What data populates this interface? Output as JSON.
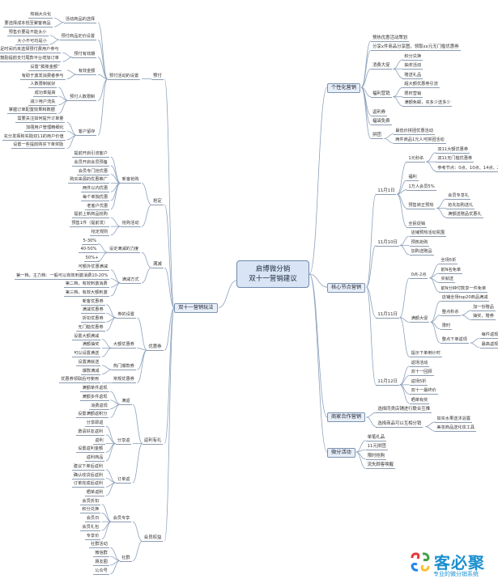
{
  "root": {
    "line1": "启博微分销",
    "line2": "双十一营销建议"
  },
  "mindmap": {
    "right": [
      {
        "t": "个性化营销",
        "c": [
          {
            "t": "预热优惠活动策划"
          },
          {
            "t": "分享x件商品分享图，领取xx元无门槛优惠券"
          },
          {
            "t": "消费大促",
            "c": [
              {
                "t": "积分兑换"
              },
              {
                "t": "抽奖活动"
              },
              {
                "t": "赠送礼品"
              }
            ]
          },
          {
            "t": "福利营销",
            "c": [
              {
                "t": "超大额优惠券引流"
              },
              {
                "t": "限时营销"
              },
              {
                "t": "满额免邮，买多少送多少"
              }
            ]
          },
          {
            "t": "返利券"
          },
          {
            "t": "福袋免费"
          },
          {
            "t": "拼团",
            "c": [
              {
                "t": "最低价拼团优惠活动"
              },
              {
                "t": "两件商品1元人可拼团活动"
              }
            ]
          }
        ]
      },
      {
        "t": "核心节点营销",
        "c": [
          {
            "t": "11月1日",
            "c": [
              {
                "t": "1元秒杀",
                "c": [
                  {
                    "t": "双11大额优惠券"
                  },
                  {
                    "t": "双11无门槛优惠券"
                  },
                  {
                    "t": "参考节点：0点、10点、14点、20点、22点"
                  }
                ]
              },
              {
                "t": "福利"
              },
              {
                "t": "1万人会员5%"
              },
              {
                "t": "预售转正预热",
                "c": [
                  {
                    "t": "会员专享礼"
                  },
                  {
                    "t": "抢先加购送礼"
                  },
                  {
                    "t": "满额送赠品优惠礼"
                  }
                ]
              },
              {
                "t": "全民促销"
              }
            ]
          },
          {
            "t": "11月10日",
            "c": [
              {
                "t": "店铺预热活动氛围"
              },
              {
                "t": "预热抢购"
              },
              {
                "t": "加购送赠品"
              }
            ]
          },
          {
            "t": "11月11日",
            "c": [
              {
                "t": "0点-2点",
                "c": [
                  {
                    "t": "全场5折"
                  },
                  {
                    "t": "前N名免单"
                  },
                  {
                    "t": "买就送"
                  },
                  {
                    "t": "前N分钟付款享一件免单"
                  }
                ]
              },
              {
                "t": "满额大促",
                "c": [
                  {
                    "t": "店铺全场top20商品满减"
                  },
                  {
                    "t": "整点秒杀",
                    "c": [
                      {
                        "t": "加一份赠品"
                      },
                      {
                        "t": "抽奖，赠券"
                      }
                    ]
                  },
                  {
                    "t": "限时"
                  },
                  {
                    "t": "整点下单返现",
                    "c": [
                      {
                        "t": "每件返现二元"
                      },
                      {
                        "t": "最高返现至买家"
                      }
                    ]
                  }
                ]
              },
              {
                "t": "提示下单倒计时"
              }
            ]
          },
          {
            "t": "11月12日",
            "c": [
              {
                "t": "返场活动"
              },
              {
                "t": "双十一回顾"
              },
              {
                "t": "返场5折"
              },
              {
                "t": "双十一最终价"
              },
              {
                "t": "晒单有奖"
              }
            ]
          }
        ]
      },
      {
        "t": "商家合作营销",
        "c": [
          {
            "t": "选择同类店铺进行联合互推"
          },
          {
            "t": "选择商品可以互相分销",
            "c": [
              {
                "t": "如买水果送沐浴露"
              },
              {
                "t": "美妆商品送化妆工具"
              }
            ]
          }
        ]
      },
      {
        "t": "微分活动",
        "c": [
          {
            "t": "单笔礼品"
          },
          {
            "t": "11元拼团"
          },
          {
            "t": "限时抢购"
          },
          {
            "t": "流失顾客唤醒"
          }
        ]
      }
    ],
    "left": [
      {
        "t": "双十一营销玩法",
        "c": [
          {
            "t": "预付",
            "c": [
              {
                "t": "预付活动的设置",
                "c": [
                  {
                    "t": "活动商品的选择",
                    "c": [
                      {
                        "t": "热销大众化"
                      },
                      {
                        "t": "要选择成本低至聚客商品"
                      }
                    ]
                  },
                  {
                    "t": "预付商品定价设置",
                    "c": [
                      {
                        "t": "预售价要是不能太小"
                      },
                      {
                        "t": "大小不可均是小"
                      }
                    ]
                  },
                  {
                    "t": "预付有效期",
                    "c": [
                      {
                        "t": "满足时间内未选择预付费用户参与"
                      },
                      {
                        "t": "鼓励提前支付尾款平台增加订单"
                      }
                    ]
                  },
                  {
                    "t": "有效金额",
                    "c": [
                      {
                        "t": "设置“膨胀金额”"
                      },
                      {
                        "t": "有助于激发消费者参与"
                      }
                    ]
                  },
                  {
                    "t": "预付人数限制",
                    "c": [
                      {
                        "t": "人数限制就好"
                      },
                      {
                        "t": "成功率提高"
                      },
                      {
                        "t": "减少用户流失"
                      },
                      {
                        "t": "掌握订单配置效果和数据"
                      }
                    ]
                  },
                  {
                    "t": "客户留存",
                    "c": [
                      {
                        "t": "需要关注如何提升订单量"
                      },
                      {
                        "t": "加强用户管理精细化"
                      },
                      {
                        "t": "充分发挥和实践双11的用户价值"
                      },
                      {
                        "t": "设置一些提前购买下单奖励"
                      }
                    ]
                  }
                ]
              }
            ]
          },
          {
            "t": "抢定",
            "c": [
              {
                "t": "新客抢购",
                "c": [
                  {
                    "t": "提前开启引流客户"
                  },
                  {
                    "t": "会员开启会员预备"
                  },
                  {
                    "t": "会员专门抢优惠"
                  },
                  {
                    "t": "购买来源的优惠推广"
                  },
                  {
                    "t": "两件以内优惠"
                  },
                  {
                    "t": "每个单独优惠"
                  },
                  {
                    "t": "老客户优惠"
                  }
                ]
              },
              {
                "t": "抢购活动",
                "c": [
                  {
                    "t": "提前上新商品抢购"
                  },
                  {
                    "t": "预售1件（提前发）"
                  },
                  {
                    "t": "抢定规则"
                  }
                ]
              }
            ]
          },
          {
            "t": "满减",
            "c": [
              {
                "t": "设定满减的力度",
                "c": [
                  {
                    "t": "5-30%"
                  },
                  {
                    "t": "40-50%"
                  },
                  {
                    "t": "50%+"
                  }
                ]
              },
              {
                "t": "满减方式",
                "c": [
                  {
                    "t": "可额外优惠满减"
                  },
                  {
                    "t": "第一档，主力档：一般可以有效刺激消费10-20%"
                  },
                  {
                    "t": "第二档，有效刺激消费"
                  },
                  {
                    "t": "第三档，有效大额刺激"
                  }
                ]
              }
            ]
          },
          {
            "t": "优惠券",
            "c": [
              {
                "t": "券的设置",
                "c": [
                  {
                    "t": "新客优惠券"
                  },
                  {
                    "t": "满减优惠券"
                  },
                  {
                    "t": "折扣优惠券"
                  },
                  {
                    "t": "无门槛优惠券"
                  }
                ]
              },
              {
                "t": "大额优惠券",
                "c": [
                  {
                    "t": "设置大额满减"
                  },
                  {
                    "t": "满额抽奖"
                  },
                  {
                    "t": "可以设置满送"
                  }
                ]
              },
              {
                "t": "热门爆款券",
                "c": [
                  {
                    "t": "设置满就送"
                  },
                  {
                    "t": "爆款满减"
                  }
                ]
              },
              {
                "t": "常规优惠券",
                "c": [
                  {
                    "t": "优惠券领取后可使用"
                  }
                ]
              }
            ]
          },
          {
            "t": "返利有礼",
            "c": [
              {
                "t": "满返",
                "c": [
                  {
                    "t": "满额单件返现"
                  },
                  {
                    "t": "满额多件返现"
                  },
                  {
                    "t": "消费返现"
                  },
                  {
                    "t": "设置满额返积分"
                  }
                ]
              },
              {
                "t": "分享返",
                "c": [
                  {
                    "t": "分享即返"
                  },
                  {
                    "t": "邀请好友返利"
                  },
                  {
                    "t": "返利"
                  },
                  {
                    "t": "设置返利金额"
                  },
                  {
                    "t": "返利商品"
                  }
                ]
              },
              {
                "t": "订单返",
                "c": [
                  {
                    "t": "建议下单后返利"
                  },
                  {
                    "t": "确认收货后返利"
                  },
                  {
                    "t": "订单完成后返利"
                  },
                  {
                    "t": "晒单返利"
                  }
                ]
              }
            ]
          },
          {
            "t": "会员权益",
            "c": [
              {
                "t": "会员专享",
                "c": [
                  {
                    "t": "会员折扣"
                  },
                  {
                    "t": "积分兑换"
                  },
                  {
                    "t": "会员日"
                  },
                  {
                    "t": "会员礼包"
                  },
                  {
                    "t": "专享价"
                  }
                ]
              },
              {
                "t": "社群",
                "c": [
                  {
                    "t": "社群活动"
                  },
                  {
                    "t": "微信群"
                  },
                  {
                    "t": "朋友圈"
                  },
                  {
                    "t": "公众号"
                  }
                ]
              }
            ]
          }
        ]
      }
    ]
  },
  "logo": {
    "name": "客必聚",
    "tagline": "专业的微分销系统"
  },
  "colors": {
    "link": "#8ea2bc",
    "node_bg": "#e6eef8",
    "root_bg": "#d9e5f4",
    "brand": "#1b8fd0"
  }
}
